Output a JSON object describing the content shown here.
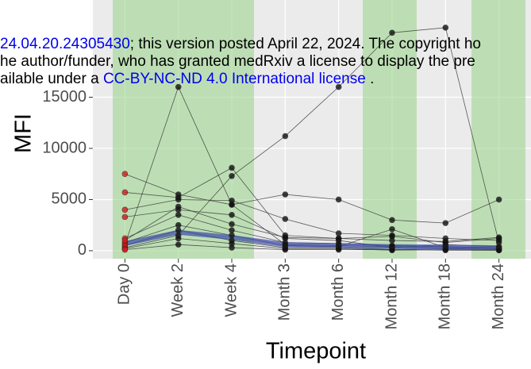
{
  "chart_data": {
    "type": "line",
    "x_label": "Timepoint",
    "y_label": "MFI",
    "categories": [
      "Day 0",
      "Week 2",
      "Week 4",
      "Month 3",
      "Month 6",
      "Month 12",
      "Month 18",
      "Month 24"
    ],
    "ylim": [
      -780,
      24500
    ],
    "yticks": [
      0,
      5000,
      10000,
      15000
    ],
    "grid": true,
    "day0_point_color": "#d7191c",
    "point_color": "#111111",
    "line_color": "#333333",
    "series": [
      {
        "values": [
          600,
          16000,
          4500,
          600,
          500,
          400,
          300,
          200
        ]
      },
      {
        "values": [
          300,
          1500,
          7300,
          11200,
          16000,
          21300,
          21800,
          800
        ]
      },
      {
        "values": [
          7500,
          5500,
          4500,
          5500,
          5000,
          3000,
          2700,
          5000
        ]
      },
      {
        "values": [
          5700,
          5200,
          8100,
          1500,
          1200,
          1000,
          900,
          1300
        ]
      },
      {
        "values": [
          4000,
          5000,
          4900,
          3100,
          1700,
          1500,
          1200,
          1000
        ]
      },
      {
        "values": [
          3300,
          4000,
          3500,
          1200,
          1000,
          300,
          600,
          400
        ]
      },
      {
        "values": [
          1200,
          3500,
          2000,
          800,
          700,
          500,
          400,
          300
        ]
      },
      {
        "values": [
          800,
          2500,
          1500,
          500,
          400,
          2100,
          300,
          200
        ]
      },
      {
        "values": [
          500,
          2000,
          1000,
          300,
          300,
          100,
          200,
          100
        ]
      },
      {
        "values": [
          200,
          1200,
          700,
          200,
          200,
          50,
          100,
          50
        ]
      },
      {
        "values": [
          100,
          600,
          300,
          100,
          100,
          100,
          50,
          50
        ]
      },
      {
        "values": [
          1000,
          4300,
          2600,
          1300,
          1200,
          1400,
          800,
          1200
        ]
      }
    ],
    "mean": {
      "color": "#3a4aa8",
      "values": [
        700,
        1800,
        1300,
        600,
        500,
        400,
        350,
        300
      ]
    }
  },
  "watermark": {
    "line1_link": "24.04.20.24305430",
    "line1_rest": "; this version posted April 22, 2024. The copyright ho",
    "line2": "he author/funder, who has granted medRxiv a license to display the pre",
    "line3_pre": "ailable under a ",
    "line3_link": "CC-BY-NC-ND 4.0 International license",
    "line3_post": " ."
  }
}
